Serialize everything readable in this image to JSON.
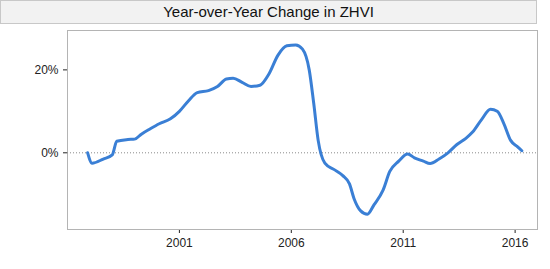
{
  "chart_data": {
    "type": "line",
    "title": "Year-over-Year Change in ZHVI",
    "color": "#3a7fd5",
    "x": [
      1996.9,
      1997.1,
      1997.6,
      1998.0,
      1998.2,
      1998.7,
      1999.0,
      1999.3,
      1999.7,
      2000.1,
      2000.6,
      2001.0,
      2001.4,
      2001.8,
      2002.3,
      2002.7,
      2003.1,
      2003.4,
      2003.8,
      2004.2,
      2004.6,
      2005.0,
      2005.4,
      2005.8,
      2006.2,
      2006.5,
      2006.8,
      2007.0,
      2007.2,
      2007.5,
      2007.9,
      2008.3,
      2008.6,
      2008.8,
      2009.1,
      2009.4,
      2009.7,
      2010.1,
      2010.4,
      2010.8,
      2011.2,
      2011.5,
      2011.9,
      2012.2,
      2012.6,
      2013.0,
      2013.4,
      2013.8,
      2014.1,
      2014.5,
      2014.9,
      2015.2,
      2015.5,
      2015.8,
      2016.1,
      2016.3
    ],
    "values": [
      0,
      -2.5,
      -1.5,
      -0.5,
      2.8,
      3.2,
      3.3,
      4.5,
      5.8,
      7,
      8.2,
      10,
      12.5,
      14.5,
      15,
      16,
      17.8,
      18,
      17,
      16,
      16.3,
      19,
      23.5,
      25.8,
      26,
      25,
      20,
      12,
      3,
      -2.5,
      -4,
      -5.5,
      -7.5,
      -11,
      -14,
      -14.8,
      -12.5,
      -9,
      -4.5,
      -2,
      -0.3,
      -1.2,
      -2,
      -2.6,
      -1.5,
      0,
      2,
      3.5,
      5,
      8,
      10.5,
      10,
      7,
      3,
      1.5,
      0.5
    ],
    "xlim": [
      1996,
      2017
    ],
    "xticks": [
      2001,
      2006,
      2011,
      2016
    ],
    "ylim": [
      -18.5,
      29.5
    ],
    "yticks": [
      {
        "value": 0,
        "label": "0%"
      },
      {
        "value": 20,
        "label": "20%"
      }
    ]
  }
}
